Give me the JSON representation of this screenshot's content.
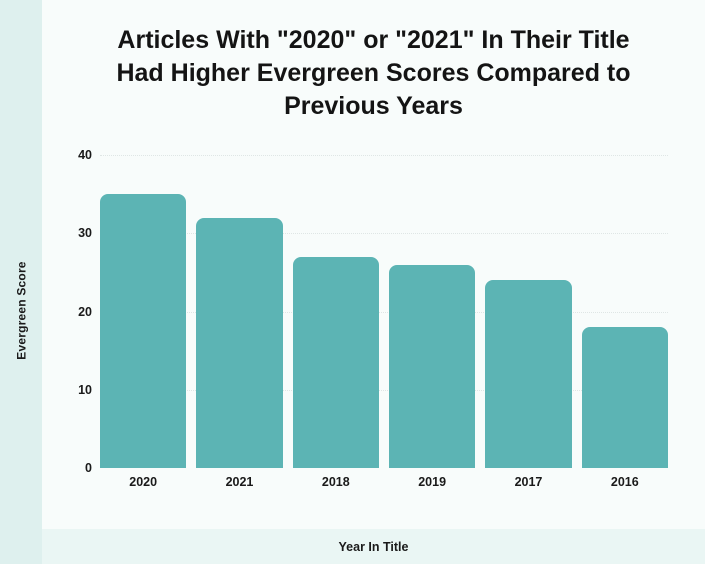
{
  "page": {
    "background": "#f8fcfb",
    "accent_strip_color": "#def0ee",
    "bottom_band_color": "#eaf6f4"
  },
  "chart_data": {
    "type": "bar",
    "title": "Articles With \"2020\" or \"2021\" In Their Title Had Higher Evergreen Scores Compared to Previous Years",
    "categories": [
      "2020",
      "2021",
      "2018",
      "2019",
      "2017",
      "2016"
    ],
    "values": [
      35,
      32,
      27,
      26,
      24,
      18
    ],
    "xlabel": "Year In Title",
    "ylabel": "Evergreen Score",
    "ylim": [
      0,
      40
    ],
    "yticks": [
      40,
      30,
      20,
      10,
      0
    ],
    "bar_color": "#5cb4b4",
    "gridline_color": "#dfe6e5",
    "grid": true,
    "legend": false,
    "legend_position": "none"
  }
}
